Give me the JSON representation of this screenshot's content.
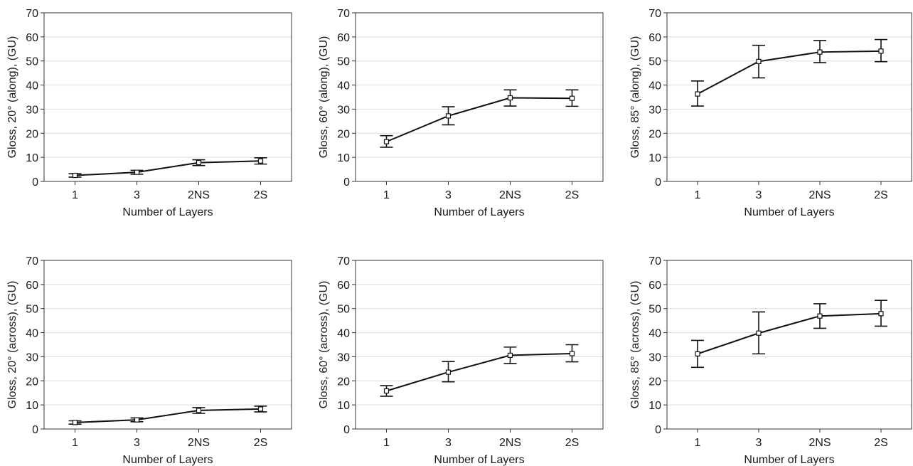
{
  "chart_data": [
    {
      "type": "line",
      "categories": [
        "1",
        "3",
        "2NS",
        "2S"
      ],
      "values": [
        2.5,
        3.8,
        7.8,
        8.5
      ],
      "error_low": [
        1.8,
        3.0,
        6.6,
        7.2
      ],
      "error_high": [
        3.2,
        4.6,
        9.0,
        9.8
      ],
      "xlabel": "Number of Layers",
      "ylabel": "Gloss, 20° (along), (GU)",
      "ylim": [
        0,
        70
      ],
      "yticks": [
        0,
        10,
        20,
        30,
        40,
        50,
        60,
        70
      ],
      "grid": "horizontal"
    },
    {
      "type": "line",
      "categories": [
        "1",
        "3",
        "2NS",
        "2S"
      ],
      "values": [
        16.5,
        27.2,
        34.7,
        34.5
      ],
      "error_low": [
        14.2,
        23.5,
        31.3,
        31.2
      ],
      "error_high": [
        19.0,
        31.0,
        38.0,
        38.0
      ],
      "xlabel": "Number of Layers",
      "ylabel": "Gloss, 60° (along), (GU)",
      "ylim": [
        0,
        70
      ],
      "yticks": [
        0,
        10,
        20,
        30,
        40,
        50,
        60,
        70
      ],
      "grid": "horizontal"
    },
    {
      "type": "line",
      "categories": [
        "1",
        "3",
        "2NS",
        "2S"
      ],
      "values": [
        36.3,
        49.8,
        53.7,
        54.1
      ],
      "error_low": [
        31.3,
        43.0,
        49.3,
        49.7
      ],
      "error_high": [
        41.7,
        56.5,
        58.5,
        58.9
      ],
      "xlabel": "Number of Layers",
      "ylabel": "Gloss, 85° (along), (GU)",
      "ylim": [
        0,
        70
      ],
      "yticks": [
        0,
        10,
        20,
        30,
        40,
        50,
        60,
        70
      ],
      "grid": "horizontal"
    },
    {
      "type": "line",
      "categories": [
        "1",
        "3",
        "2NS",
        "2S"
      ],
      "values": [
        2.7,
        3.8,
        7.7,
        8.3
      ],
      "error_low": [
        2.0,
        3.0,
        6.5,
        7.1
      ],
      "error_high": [
        3.4,
        4.6,
        8.9,
        9.5
      ],
      "xlabel": "Number of Layers",
      "ylabel": "Gloss, 20° (across), (GU)",
      "ylim": [
        0,
        70
      ],
      "yticks": [
        0,
        10,
        20,
        30,
        40,
        50,
        60,
        70
      ],
      "grid": "horizontal"
    },
    {
      "type": "line",
      "categories": [
        "1",
        "3",
        "2NS",
        "2S"
      ],
      "values": [
        15.8,
        23.6,
        30.6,
        31.3
      ],
      "error_low": [
        13.6,
        19.6,
        27.2,
        27.9
      ],
      "error_high": [
        18.0,
        28.0,
        34.0,
        35.0
      ],
      "xlabel": "Number of Layers",
      "ylabel": "Gloss, 60° (across), (GU)",
      "ylim": [
        0,
        70
      ],
      "yticks": [
        0,
        10,
        20,
        30,
        40,
        50,
        60,
        70
      ],
      "grid": "horizontal"
    },
    {
      "type": "line",
      "categories": [
        "1",
        "3",
        "2NS",
        "2S"
      ],
      "values": [
        31.2,
        39.8,
        46.9,
        47.9
      ],
      "error_low": [
        25.6,
        31.2,
        41.8,
        42.7
      ],
      "error_high": [
        36.8,
        48.6,
        52.0,
        53.4
      ],
      "xlabel": "Number of Layers",
      "ylabel": "Gloss, 85° (across), (GU)",
      "ylim": [
        0,
        70
      ],
      "yticks": [
        0,
        10,
        20,
        30,
        40,
        50,
        60,
        70
      ],
      "grid": "horizontal"
    }
  ]
}
